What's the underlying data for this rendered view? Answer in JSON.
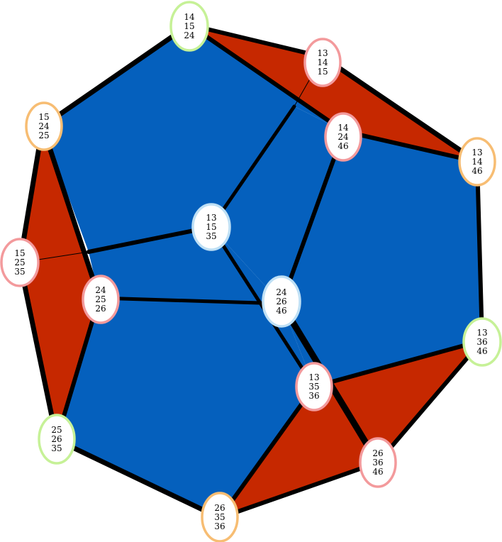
{
  "colors": {
    "face_blue": "#0560bd",
    "face_red": "#c62800",
    "edge": "#000000",
    "ring_green": "#c6f197",
    "ring_orange": "#f7bd73",
    "ring_pink": "#f39a9c",
    "ring_blue": "#bfe0f5"
  },
  "nodes": [
    {
      "id": "n14-15-24",
      "lines": [
        "14",
        "15",
        "24"
      ],
      "ring": "ring_green"
    },
    {
      "id": "n13-14-15",
      "lines": [
        "13",
        "14",
        "15"
      ],
      "ring": "ring_pink"
    },
    {
      "id": "n15-24-25",
      "lines": [
        "15",
        "24",
        "25"
      ],
      "ring": "ring_orange"
    },
    {
      "id": "n14-24-46",
      "lines": [
        "14",
        "24",
        "46"
      ],
      "ring": "ring_pink"
    },
    {
      "id": "n13-14-46",
      "lines": [
        "13",
        "14",
        "46"
      ],
      "ring": "ring_orange"
    },
    {
      "id": "n13-15-35",
      "lines": [
        "13",
        "15",
        "35"
      ],
      "ring": "ring_blue"
    },
    {
      "id": "n15-25-35",
      "lines": [
        "15",
        "25",
        "35"
      ],
      "ring": "ring_pink"
    },
    {
      "id": "n24-25-26",
      "lines": [
        "24",
        "25",
        "26"
      ],
      "ring": "ring_pink"
    },
    {
      "id": "n24-26-46",
      "lines": [
        "24",
        "26",
        "46"
      ],
      "ring": "ring_blue"
    },
    {
      "id": "n13-36-46",
      "lines": [
        "13",
        "36",
        "46"
      ],
      "ring": "ring_green"
    },
    {
      "id": "n13-35-36",
      "lines": [
        "13",
        "35",
        "36"
      ],
      "ring": "ring_pink"
    },
    {
      "id": "n25-26-35",
      "lines": [
        "25",
        "26",
        "35"
      ],
      "ring": "ring_green"
    },
    {
      "id": "n26-36-46",
      "lines": [
        "26",
        "36",
        "46"
      ],
      "ring": "ring_pink"
    },
    {
      "id": "n26-35-36",
      "lines": [
        "26",
        "35",
        "36"
      ],
      "ring": "ring_orange"
    }
  ]
}
